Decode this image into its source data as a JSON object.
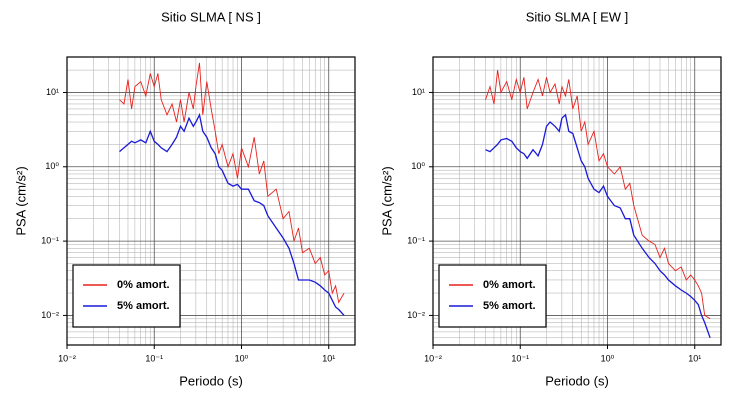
{
  "chart_data": [
    {
      "type": "line",
      "title": "Sitio SLMA [ NS ]",
      "x_label": "Periodo (s)",
      "y_label": "PSA (cm/s²)",
      "xlog": true,
      "ylog": true,
      "grid": true,
      "minor_grid": true,
      "legend": "lower left",
      "xlim": [
        0.01,
        20
      ],
      "ylim": [
        0.004,
        30
      ],
      "xticks": [
        {
          "value": 0.01,
          "label": "10⁻²"
        },
        {
          "value": 0.1,
          "label": "10⁻¹"
        },
        {
          "value": 1,
          "label": "10⁰"
        },
        {
          "value": 10,
          "label": "10¹"
        }
      ],
      "yticks": [
        {
          "value": 0.01,
          "label": "10⁻²"
        },
        {
          "value": 0.1,
          "label": "10⁻¹"
        },
        {
          "value": 1,
          "label": "10⁰"
        },
        {
          "value": 10,
          "label": "10¹"
        }
      ],
      "x": [
        0.04,
        0.045,
        0.05,
        0.055,
        0.06,
        0.07,
        0.08,
        0.09,
        0.1,
        0.11,
        0.12,
        0.14,
        0.16,
        0.18,
        0.2,
        0.22,
        0.25,
        0.28,
        0.3,
        0.33,
        0.36,
        0.4,
        0.45,
        0.5,
        0.55,
        0.6,
        0.7,
        0.8,
        0.9,
        1,
        1.2,
        1.4,
        1.6,
        1.8,
        2,
        2.5,
        3,
        3.5,
        4,
        4.5,
        5,
        6,
        7,
        8,
        9,
        10,
        11,
        12,
        13,
        15
      ],
      "series": [
        {
          "name": "0% amort.",
          "color": "#e8201c",
          "values": [
            8,
            7,
            15,
            6,
            12,
            14,
            9,
            18,
            12,
            18,
            8,
            5,
            7,
            4,
            8,
            4,
            10,
            6,
            12,
            25,
            5,
            14,
            6,
            3,
            1.5,
            2,
            1,
            1.5,
            0.7,
            1.8,
            1.0,
            2.5,
            0.8,
            1.2,
            0.4,
            0.5,
            0.2,
            0.25,
            0.1,
            0.15,
            0.07,
            0.08,
            0.05,
            0.06,
            0.035,
            0.04,
            0.02,
            0.025,
            0.015,
            0.02
          ]
        },
        {
          "name": "5% amort.",
          "color": "#1a1ad8",
          "values": [
            1.6,
            1.8,
            2,
            2.2,
            2.1,
            2.3,
            2.1,
            3,
            2.2,
            2.0,
            1.8,
            1.6,
            2.0,
            2.5,
            3.5,
            3.0,
            4.5,
            3.5,
            4.0,
            5.0,
            3.0,
            2.5,
            1.8,
            1.5,
            1.0,
            0.9,
            0.6,
            0.55,
            0.58,
            0.5,
            0.5,
            0.35,
            0.33,
            0.3,
            0.22,
            0.15,
            0.11,
            0.08,
            0.05,
            0.03,
            0.03,
            0.03,
            0.028,
            0.025,
            0.022,
            0.02,
            0.016,
            0.013,
            0.012,
            0.01
          ]
        }
      ]
    },
    {
      "type": "line",
      "title": "Sitio SLMA [ EW ]",
      "x_label": "Periodo (s)",
      "y_label": "PSA (cm/s²)",
      "xlog": true,
      "ylog": true,
      "grid": true,
      "minor_grid": true,
      "legend": "lower left",
      "xlim": [
        0.01,
        20
      ],
      "ylim": [
        0.004,
        30
      ],
      "xticks": [
        {
          "value": 0.01,
          "label": "10⁻²"
        },
        {
          "value": 0.1,
          "label": "10⁻¹"
        },
        {
          "value": 1,
          "label": "10⁰"
        },
        {
          "value": 10,
          "label": "10¹"
        }
      ],
      "yticks": [
        {
          "value": 0.01,
          "label": "10⁻²"
        },
        {
          "value": 0.1,
          "label": "10⁻¹"
        },
        {
          "value": 1,
          "label": "10⁰"
        },
        {
          "value": 10,
          "label": "10¹"
        }
      ],
      "x": [
        0.04,
        0.045,
        0.05,
        0.055,
        0.06,
        0.07,
        0.08,
        0.09,
        0.1,
        0.11,
        0.12,
        0.14,
        0.16,
        0.18,
        0.2,
        0.22,
        0.25,
        0.28,
        0.3,
        0.33,
        0.36,
        0.4,
        0.45,
        0.5,
        0.55,
        0.6,
        0.7,
        0.8,
        0.9,
        1,
        1.2,
        1.4,
        1.6,
        1.8,
        2,
        2.5,
        3,
        3.5,
        4,
        4.5,
        5,
        6,
        7,
        8,
        9,
        10,
        11,
        12,
        13,
        15
      ],
      "series": [
        {
          "name": "0% amort.",
          "color": "#e8201c",
          "values": [
            8,
            12,
            7,
            20,
            10,
            14,
            8,
            15,
            10,
            16,
            6,
            10,
            15,
            9,
            16,
            10,
            13,
            7,
            12,
            9,
            15,
            6,
            9,
            3,
            4,
            2,
            3,
            1.2,
            1.5,
            1.0,
            0.8,
            1.0,
            0.5,
            0.6,
            0.3,
            0.12,
            0.1,
            0.09,
            0.06,
            0.08,
            0.05,
            0.04,
            0.045,
            0.03,
            0.035,
            0.03,
            0.025,
            0.02,
            0.01,
            0.009
          ]
        },
        {
          "name": "5% amort.",
          "color": "#1a1ad8",
          "values": [
            1.7,
            1.6,
            1.8,
            2.0,
            2.3,
            2.4,
            2.2,
            1.8,
            1.6,
            1.5,
            1.3,
            1.7,
            1.4,
            2.0,
            3.5,
            4.0,
            3.5,
            3.0,
            4.5,
            5.0,
            3.0,
            2.8,
            1.8,
            1.2,
            1.0,
            0.7,
            0.5,
            0.45,
            0.55,
            0.4,
            0.3,
            0.28,
            0.2,
            0.2,
            0.12,
            0.08,
            0.06,
            0.05,
            0.04,
            0.035,
            0.03,
            0.025,
            0.022,
            0.02,
            0.018,
            0.016,
            0.014,
            0.01,
            0.008,
            0.005
          ]
        }
      ]
    }
  ]
}
